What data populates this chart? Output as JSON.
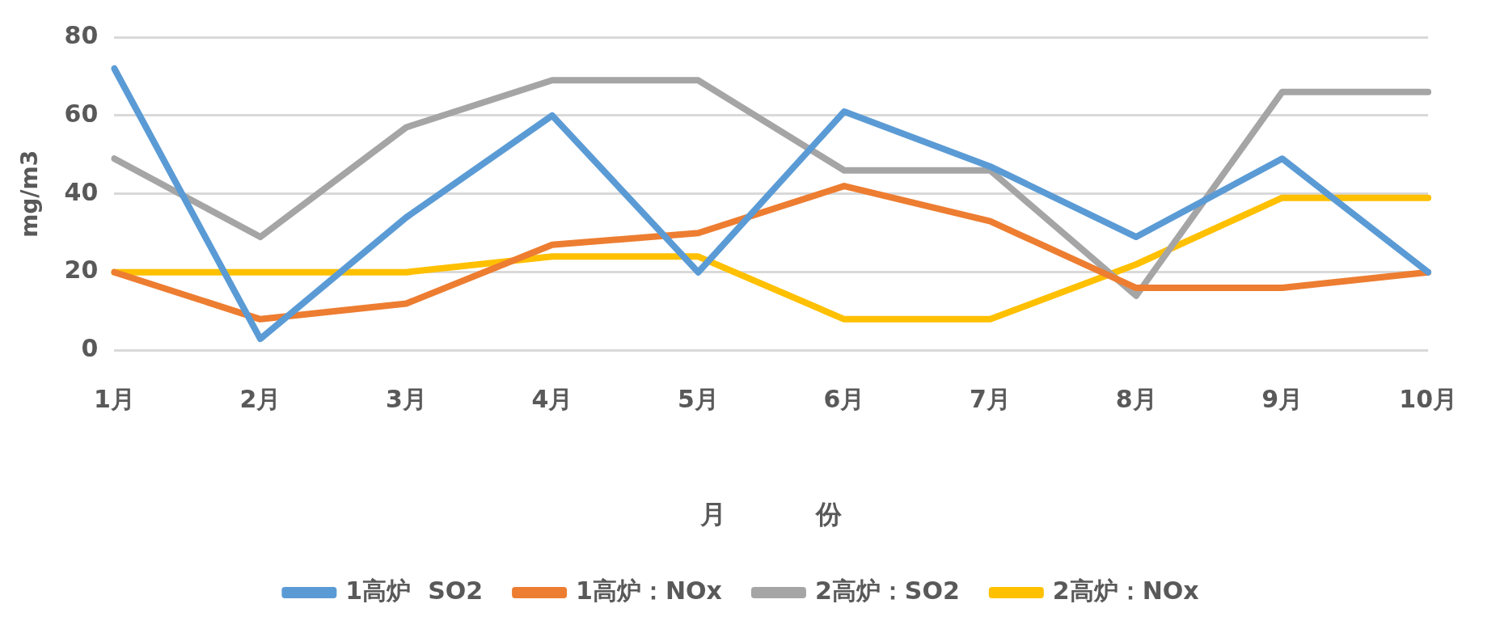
{
  "chart_data": {
    "type": "line",
    "xlabel": "月          份",
    "ylabel": "mg/m3",
    "categories": [
      "1月",
      "2月",
      "3月",
      "4月",
      "5月",
      "6月",
      "7月",
      "8月",
      "9月",
      "10月"
    ],
    "series": [
      {
        "name": "1高炉  SO2",
        "color": "#5b9bd5",
        "values": [
          72,
          3,
          34,
          60,
          20,
          61,
          47,
          29,
          49,
          20
        ]
      },
      {
        "name": "1高炉：NOx",
        "color": "#ed7d31",
        "values": [
          20,
          8,
          12,
          27,
          30,
          42,
          33,
          16,
          16,
          20
        ]
      },
      {
        "name": "2高炉：SO2",
        "color": "#a5a5a5",
        "values": [
          49,
          29,
          57,
          69,
          69,
          46,
          46,
          14,
          66,
          66
        ]
      },
      {
        "name": "2高炉：NOx",
        "color": "#ffc000",
        "values": [
          20,
          20,
          20,
          24,
          24,
          8,
          8,
          22,
          39,
          39
        ]
      }
    ],
    "ylim": [
      0,
      80
    ],
    "yticks": [
      0,
      20,
      40,
      60,
      80
    ],
    "grid": "y",
    "legend": "bottom",
    "marker": "none",
    "line_style": "solid"
  }
}
